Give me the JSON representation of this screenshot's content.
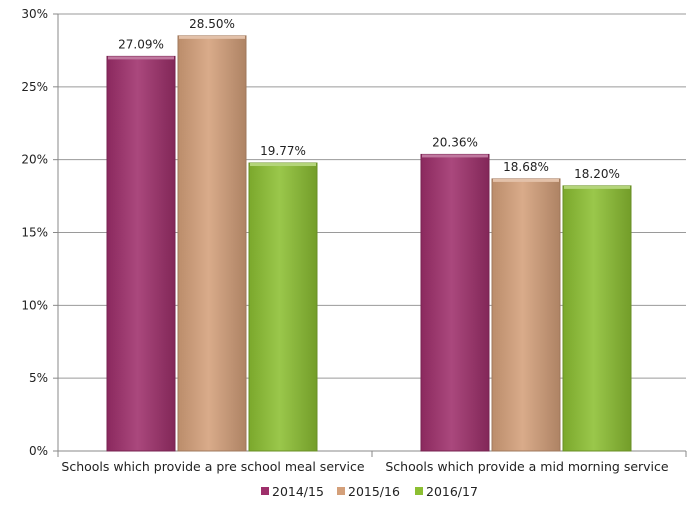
{
  "chart_data": {
    "type": "bar",
    "title": "",
    "xlabel": "",
    "ylabel": "",
    "categories": [
      "Schools which provide a pre school meal service",
      "Schools which provide a mid morning service"
    ],
    "series": [
      {
        "name": "2014/15",
        "color": "#9e2f6b",
        "values": [
          27.09,
          20.36
        ],
        "labels": [
          "27.09%",
          "20.36%"
        ]
      },
      {
        "name": "2015/16",
        "color": "#d4a07a",
        "values": [
          28.5,
          18.68
        ],
        "labels": [
          "28.50%",
          "18.68%"
        ]
      },
      {
        "name": "2016/17",
        "color": "#8cbf32",
        "values": [
          19.77,
          18.2
        ],
        "labels": [
          "19.77%",
          "18.20%"
        ]
      }
    ],
    "ylim": [
      0,
      30
    ],
    "yticks": [
      0,
      5,
      10,
      15,
      20,
      25,
      30
    ],
    "ytick_labels": [
      "0%",
      "5%",
      "10%",
      "15%",
      "20%",
      "25%",
      "30%"
    ],
    "grid": true,
    "legend_position": "bottom"
  }
}
